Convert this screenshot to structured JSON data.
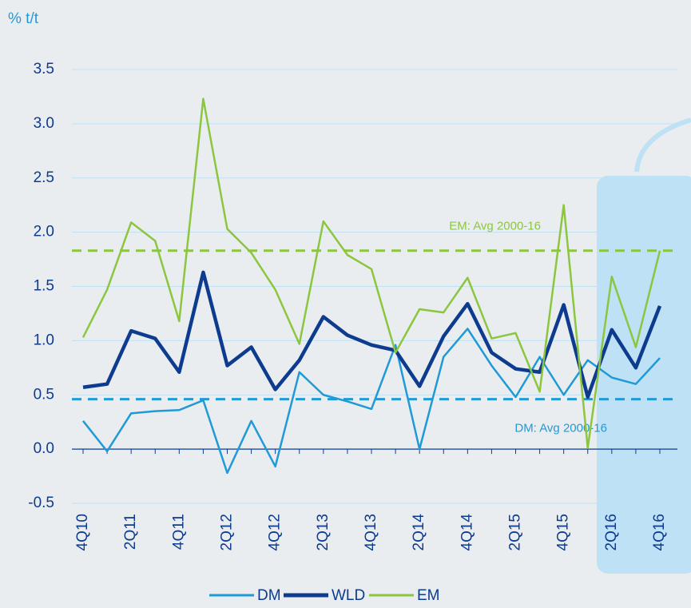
{
  "chart_data": {
    "type": "line",
    "y_label": "% t/t",
    "categories": [
      "4Q10",
      null,
      "2Q11",
      null,
      "4Q11",
      null,
      "2Q12",
      null,
      "4Q12",
      null,
      "2Q13",
      null,
      "4Q13",
      null,
      "2Q14",
      null,
      "4Q14",
      null,
      "2Q15",
      null,
      "4Q15",
      null,
      "2Q16",
      null,
      "4Q16"
    ],
    "series": [
      {
        "name": "DM",
        "color": "#1f9ad6",
        "values": [
          0.26,
          -0.02,
          0.33,
          0.35,
          0.36,
          0.45,
          -0.22,
          0.26,
          -0.16,
          0.71,
          0.5,
          0.44,
          0.37,
          0.96,
          0.0,
          0.85,
          1.11,
          0.77,
          0.48,
          0.85,
          0.5,
          0.82,
          0.66,
          0.6,
          0.84
        ]
      },
      {
        "name": "WLD",
        "color": "#0d3b8e",
        "values": [
          0.57,
          0.6,
          1.09,
          1.02,
          0.71,
          1.63,
          0.77,
          0.94,
          0.55,
          0.82,
          1.22,
          1.05,
          0.96,
          0.91,
          0.58,
          1.04,
          1.34,
          0.89,
          0.74,
          0.71,
          1.33,
          0.48,
          1.1,
          0.75,
          1.32
        ]
      },
      {
        "name": "EM",
        "color": "#8cc63f",
        "values": [
          1.03,
          1.47,
          2.09,
          1.92,
          1.18,
          3.23,
          2.03,
          1.81,
          1.47,
          0.97,
          2.1,
          1.79,
          1.66,
          0.89,
          1.29,
          1.26,
          1.58,
          1.02,
          1.07,
          0.53,
          2.25,
          0.01,
          1.59,
          0.94,
          1.83
        ]
      }
    ],
    "reference_lines": [
      {
        "label": "EM: Avg 2000-16",
        "value": 1.83,
        "color": "#8cc63f"
      },
      {
        "label": "DM: Avg 2000-16",
        "value": 0.46,
        "color": "#1f9ad6"
      }
    ],
    "ylim": [
      -0.5,
      3.5
    ],
    "yticks": [
      -0.5,
      {
        "value": 0,
        "label": "0.0"
      },
      0.5,
      {
        "value": 1,
        "label": "1.0"
      },
      1.5,
      {
        "value": 2,
        "label": "2.0"
      },
      2.5,
      {
        "value": 3,
        "label": "3.0"
      },
      3.5
    ],
    "grid": true,
    "legend": "bottom"
  }
}
